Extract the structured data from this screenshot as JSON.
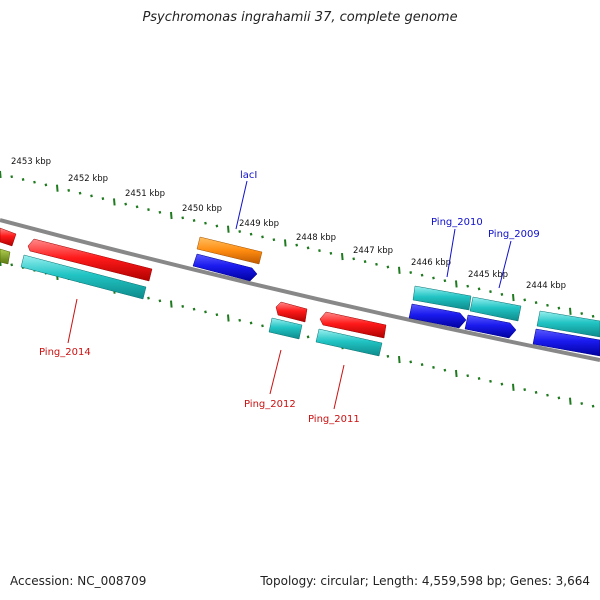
{
  "header": {
    "title": "Psychromonas ingrahamii 37, complete genome"
  },
  "footer": {
    "accession": "Accession: NC_008709",
    "summary": "Topology: circular; Length: 4,559,598 bp; Genes: 3,664"
  },
  "scale_labels": [
    "2453 kbp",
    "2452 kbp",
    "2451 kbp",
    "2450 kbp",
    "2449 kbp",
    "2448 kbp",
    "2447 kbp",
    "2446 kbp",
    "2445 kbp",
    "2444 kbp"
  ],
  "gene_labels": {
    "laci": "lacI",
    "ping_2010": "Ping_2010",
    "ping_2009": "Ping_2009",
    "ping_2014": "Ping_2014",
    "ping_2012": "Ping_2012",
    "ping_2011": "Ping_2011"
  },
  "colors": {
    "strand_line": "#888888",
    "scale_ticks": "#1e7a1e",
    "forward_gene": "#ff1a1a",
    "reverse_gene": "#1a1aee",
    "cds_teal": "#22c4c4",
    "rna_orange": "#ff8c10",
    "olive": "#7a9a20",
    "label_blue": "#1010cc",
    "label_red": "#cc1010"
  }
}
